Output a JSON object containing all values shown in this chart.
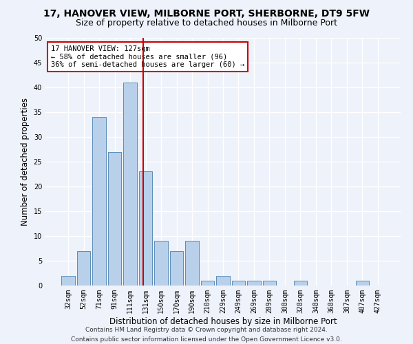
{
  "title": "17, HANOVER VIEW, MILBORNE PORT, SHERBORNE, DT9 5FW",
  "subtitle": "Size of property relative to detached houses in Milborne Port",
  "xlabel": "Distribution of detached houses by size in Milborne Port",
  "ylabel": "Number of detached properties",
  "categories": [
    "32sqm",
    "52sqm",
    "71sqm",
    "91sqm",
    "111sqm",
    "131sqm",
    "150sqm",
    "170sqm",
    "190sqm",
    "210sqm",
    "229sqm",
    "249sqm",
    "269sqm",
    "289sqm",
    "308sqm",
    "328sqm",
    "348sqm",
    "368sqm",
    "387sqm",
    "407sqm",
    "427sqm"
  ],
  "values": [
    2,
    7,
    34,
    27,
    41,
    23,
    9,
    7,
    9,
    1,
    2,
    1,
    1,
    1,
    0,
    1,
    0,
    0,
    0,
    1,
    0
  ],
  "bar_color": "#B8D0EA",
  "bar_edge_color": "#5B8DB8",
  "property_line_bin_index": 4.85,
  "annotation_text": "17 HANOVER VIEW: 127sqm\n← 58% of detached houses are smaller (96)\n36% of semi-detached houses are larger (60) →",
  "annotation_box_color": "#ffffff",
  "annotation_box_edge_color": "#cc0000",
  "vline_color": "#cc0000",
  "footer_line1": "Contains HM Land Registry data © Crown copyright and database right 2024.",
  "footer_line2": "Contains public sector information licensed under the Open Government Licence v3.0.",
  "ylim": [
    0,
    50
  ],
  "yticks": [
    0,
    5,
    10,
    15,
    20,
    25,
    30,
    35,
    40,
    45,
    50
  ],
  "background_color": "#EEF2FA",
  "grid_color": "#ffffff",
  "title_fontsize": 10,
  "subtitle_fontsize": 9,
  "axis_label_fontsize": 8.5,
  "tick_fontsize": 7,
  "footer_fontsize": 6.5,
  "annotation_fontsize": 7.5
}
